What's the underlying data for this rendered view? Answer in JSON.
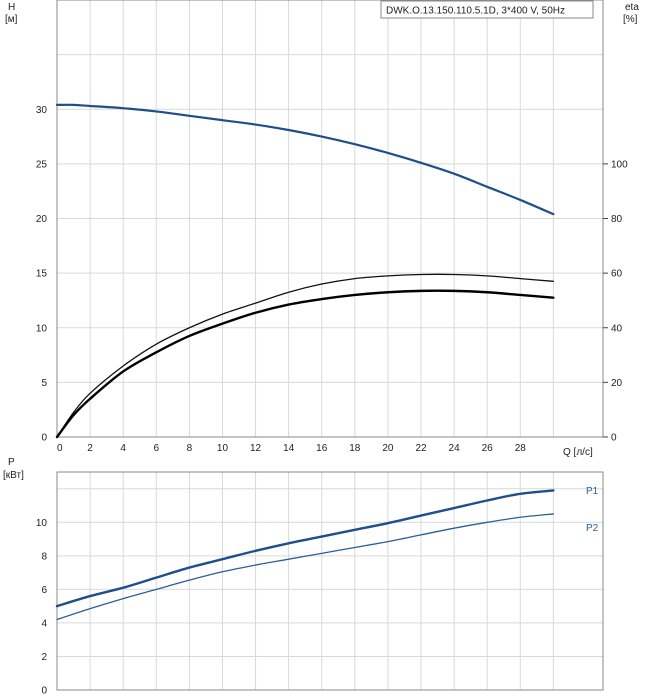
{
  "chart_data": [
    {
      "type": "line",
      "title": "DWK.O.13.150.110.5.1D, 3*400 V, 50Hz",
      "xlabel": "Q [л/с]",
      "ylabel_lines": [
        "H",
        "[м]"
      ],
      "y2label_lines": [
        "eta",
        "[%]"
      ],
      "xlim": [
        0,
        33
      ],
      "ylim": [
        0,
        40
      ],
      "y2lim": [
        0,
        160
      ],
      "x_ticks": [
        0,
        2,
        4,
        6,
        8,
        10,
        12,
        14,
        16,
        18,
        20,
        22,
        24,
        26,
        28
      ],
      "y_ticks": [
        0,
        5,
        10,
        15,
        20,
        25,
        30
      ],
      "y2_ticks": [
        0,
        20,
        40,
        60,
        80,
        100
      ],
      "grid": true,
      "series": [
        {
          "axis": "left",
          "color": "#1f4e8c",
          "x": [
            0,
            1,
            2,
            4,
            6,
            8,
            10,
            12,
            14,
            16,
            18,
            20,
            22,
            24,
            26,
            28,
            30
          ],
          "values": [
            30.4,
            30.4,
            30.3,
            30.1,
            29.8,
            29.4,
            29.0,
            28.6,
            28.1,
            27.5,
            26.8,
            26.0,
            25.1,
            24.1,
            22.9,
            21.7,
            20.4
          ]
        },
        {
          "axis": "right",
          "color": "#111111",
          "x": [
            0,
            1,
            2,
            4,
            6,
            8,
            10,
            12,
            14,
            16,
            18,
            20,
            22,
            24,
            26,
            28,
            30
          ],
          "values": [
            0,
            9,
            16,
            26,
            34,
            40,
            45,
            49,
            53,
            56,
            58,
            59,
            59.5,
            59.5,
            59,
            58,
            57
          ]
        },
        {
          "axis": "right",
          "color": "#000000",
          "x": [
            0,
            1,
            2,
            4,
            6,
            8,
            10,
            12,
            14,
            16,
            18,
            20,
            22,
            24,
            26,
            28,
            30
          ],
          "values": [
            0,
            8,
            14,
            24,
            31,
            37,
            41.5,
            45.5,
            48.5,
            50.5,
            52,
            53,
            53.5,
            53.5,
            53,
            52,
            51
          ]
        }
      ]
    },
    {
      "type": "line",
      "ylabel_lines": [
        "P",
        "[кВт]"
      ],
      "xlim": [
        0,
        33
      ],
      "ylim": [
        0,
        13
      ],
      "y_ticks": [
        0,
        2,
        4,
        6,
        8,
        10
      ],
      "grid": true,
      "series": [
        {
          "name": "P1",
          "color": "#1f4e8c",
          "x": [
            0,
            2,
            4,
            6,
            8,
            10,
            12,
            14,
            16,
            18,
            20,
            22,
            24,
            26,
            28,
            30
          ],
          "values": [
            5.0,
            5.6,
            6.1,
            6.7,
            7.3,
            7.8,
            8.3,
            8.75,
            9.15,
            9.55,
            9.95,
            10.4,
            10.85,
            11.3,
            11.7,
            11.9
          ]
        },
        {
          "name": "P2",
          "color": "#2a5f99",
          "x": [
            0,
            2,
            4,
            6,
            8,
            10,
            12,
            14,
            16,
            18,
            20,
            22,
            24,
            26,
            28,
            30
          ],
          "values": [
            4.2,
            4.85,
            5.45,
            6.0,
            6.55,
            7.05,
            7.45,
            7.8,
            8.15,
            8.5,
            8.85,
            9.25,
            9.65,
            10.0,
            10.3,
            10.5
          ]
        }
      ]
    }
  ]
}
